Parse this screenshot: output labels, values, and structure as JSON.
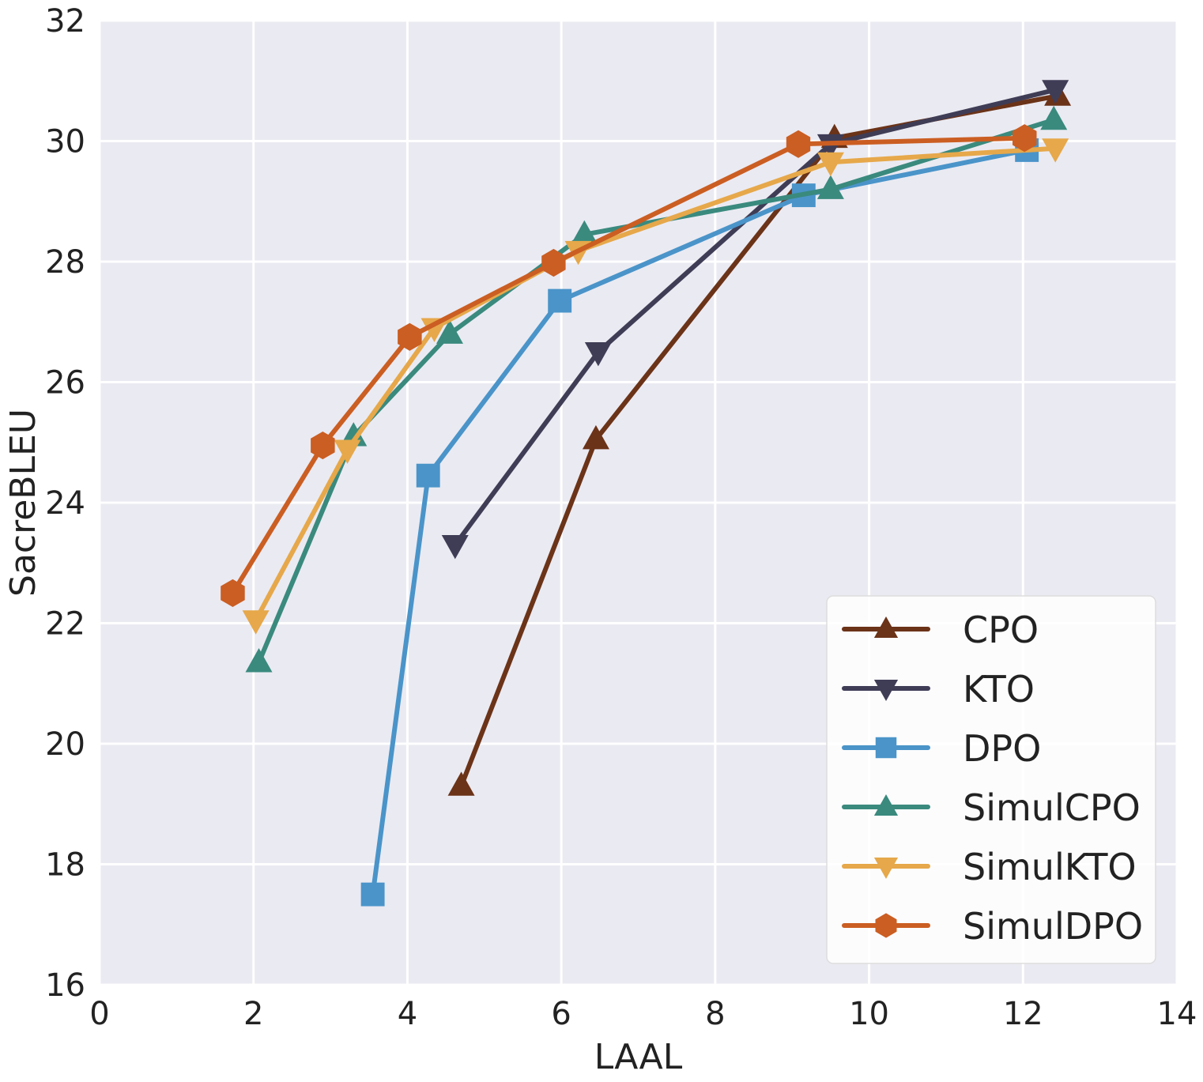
{
  "chart_data": {
    "type": "line",
    "title": "",
    "xlabel": "LAAL",
    "ylabel": "SacreBLEU",
    "xlim": [
      0,
      14
    ],
    "ylim": [
      16,
      32
    ],
    "xticks": [
      0,
      2,
      4,
      6,
      8,
      10,
      12,
      14
    ],
    "yticks": [
      16,
      18,
      20,
      22,
      24,
      26,
      28,
      30,
      32
    ],
    "grid": true,
    "legend_position": "bottom-right",
    "series": [
      {
        "name": "CPO",
        "color": "#6b3318",
        "marker": "triangle-up",
        "x": [
          4.7,
          6.45,
          9.55,
          12.45
        ],
        "y": [
          19.3,
          25.05,
          30.05,
          30.75
        ]
      },
      {
        "name": "KTO",
        "color": "#3f3d56",
        "marker": "triangle-down",
        "x": [
          4.62,
          6.48,
          9.5,
          12.42
        ],
        "y": [
          23.3,
          26.5,
          29.95,
          30.85
        ]
      },
      {
        "name": "DPO",
        "color": "#4a94c9",
        "marker": "square",
        "x": [
          3.55,
          4.27,
          5.98,
          9.15,
          12.05
        ],
        "y": [
          17.5,
          24.45,
          27.35,
          29.1,
          29.85
        ]
      },
      {
        "name": "SimulCPO",
        "color": "#3a8a7e",
        "marker": "triangle-up",
        "x": [
          2.07,
          3.3,
          4.55,
          6.3,
          9.5,
          12.4
        ],
        "y": [
          21.35,
          25.1,
          26.8,
          28.45,
          29.2,
          30.35
        ]
      },
      {
        "name": "SimulKTO",
        "color": "#e6a84a",
        "marker": "triangle-down",
        "x": [
          2.03,
          3.22,
          4.35,
          6.22,
          9.5,
          12.42
        ],
        "y": [
          22.05,
          24.88,
          26.9,
          28.18,
          29.65,
          29.88
        ]
      },
      {
        "name": "SimulDPO",
        "color": "#cb5e22",
        "marker": "hexagon",
        "x": [
          1.73,
          2.9,
          4.03,
          5.9,
          9.08,
          12.02
        ],
        "y": [
          22.5,
          24.95,
          26.75,
          27.98,
          29.95,
          30.05
        ]
      }
    ]
  }
}
